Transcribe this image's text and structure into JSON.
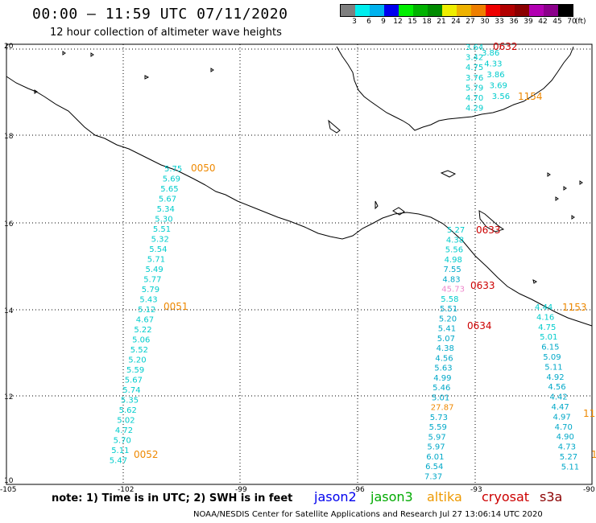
{
  "header": {
    "title": "00:00 – 11:59 UTC 07/11/2020",
    "subtitle": "12 hour collection of altimeter wave heights"
  },
  "scale": {
    "colors": [
      "#7f7f7f",
      "#00eeee",
      "#00b2ee",
      "#0000ee",
      "#00ee00",
      "#00b200",
      "#008b00",
      "#eeee00",
      "#eeb200",
      "#ee7f00",
      "#ee0000",
      "#b20000",
      "#8b0000",
      "#b200b2",
      "#8b008b",
      "#000000"
    ],
    "labels": [
      "3",
      "6",
      "9",
      "12",
      "15",
      "18",
      "21",
      "24",
      "27",
      "30",
      "33",
      "36",
      "39",
      "42",
      "45",
      "70"
    ],
    "unit": "(ft)"
  },
  "axes": {
    "lon_labels": [
      "-105",
      "-102",
      "-99",
      "-96",
      "-93",
      "-90"
    ],
    "lat_labels": [
      "20",
      "18",
      "16",
      "14",
      "12",
      "10"
    ]
  },
  "tracks": [
    {
      "color": "#00cccc",
      "values": [
        "5.75",
        "5.69",
        "5.65",
        "5.67",
        "5.34",
        "5.30",
        "5.51",
        "5.32",
        "5.54",
        "5.71",
        "5.49",
        "5.77",
        "5.79",
        "5.43",
        "5.12",
        "4.67",
        "5.22",
        "5.06",
        "5.52",
        "5.20",
        "5.59",
        "5.67",
        "5.74",
        "5.35",
        "5.62",
        "5.02",
        "4.72",
        "5.70",
        "5.11",
        "5.47"
      ]
    },
    {
      "color": "#00cccc",
      "values": [
        "3.64",
        "3.42",
        "4.75",
        "3.76",
        "5.79",
        "4.70",
        "4.29"
      ]
    },
    {
      "color": "#00cccc",
      "values": [
        "3.86",
        "4.33",
        "3.86",
        "3.69",
        "3.56"
      ]
    },
    {
      "color": "#00cccc",
      "values": [
        "5.27",
        "4.38",
        "5.56",
        "4.98",
        "7.55",
        "4.83",
        "45.73",
        "5.58",
        "5.51",
        "5.20",
        "5.41",
        "5.07",
        "4.38",
        "4.56",
        "5.63",
        "4.99",
        "5.46",
        "5.01",
        "27.87",
        "5.73",
        "5.59",
        "5.97",
        "5.97",
        "6.01",
        "6.54",
        "7.37"
      ]
    },
    {
      "color": "#00cccc",
      "values": [
        "4.44",
        "4.16",
        "4.75",
        "5.01",
        "6.15",
        "5.09",
        "5.11",
        "4.92",
        "4.56",
        "4.42",
        "4.47",
        "4.97",
        "4.70",
        "4.90",
        "4.73",
        "5.27",
        "5.11"
      ]
    }
  ],
  "time_labels": [
    {
      "text": "0050",
      "color": "#ee8800"
    },
    {
      "text": "0051",
      "color": "#ee8800"
    },
    {
      "text": "0052",
      "color": "#ee8800"
    },
    {
      "text": "0632",
      "color": "#cc0000"
    },
    {
      "text": "1154",
      "color": "#ee8800"
    },
    {
      "text": "0633",
      "color": "#cc0000"
    },
    {
      "text": "0633",
      "color": "#cc0000"
    },
    {
      "text": "0634",
      "color": "#cc0000"
    },
    {
      "text": "1153",
      "color": "#ee8800"
    },
    {
      "text": "11",
      "color": "#ee8800"
    },
    {
      "text": "1",
      "color": "#ee8800"
    }
  ],
  "footer": {
    "note": "note: 1) Time is in UTC; 2) SWH is in feet",
    "satellites": [
      {
        "name": "jason2",
        "color": "#0000ee"
      },
      {
        "name": "jason3",
        "color": "#00aa00"
      },
      {
        "name": "altika",
        "color": "#ee9900"
      },
      {
        "name": "cryosat",
        "color": "#cc0000"
      },
      {
        "name": "s3a",
        "color": "#8b0000"
      }
    ],
    "credit": "NOAA/NESDIS Center for Satellite Applications and Research    Jul 27 13:06:14 UTC 2020"
  }
}
